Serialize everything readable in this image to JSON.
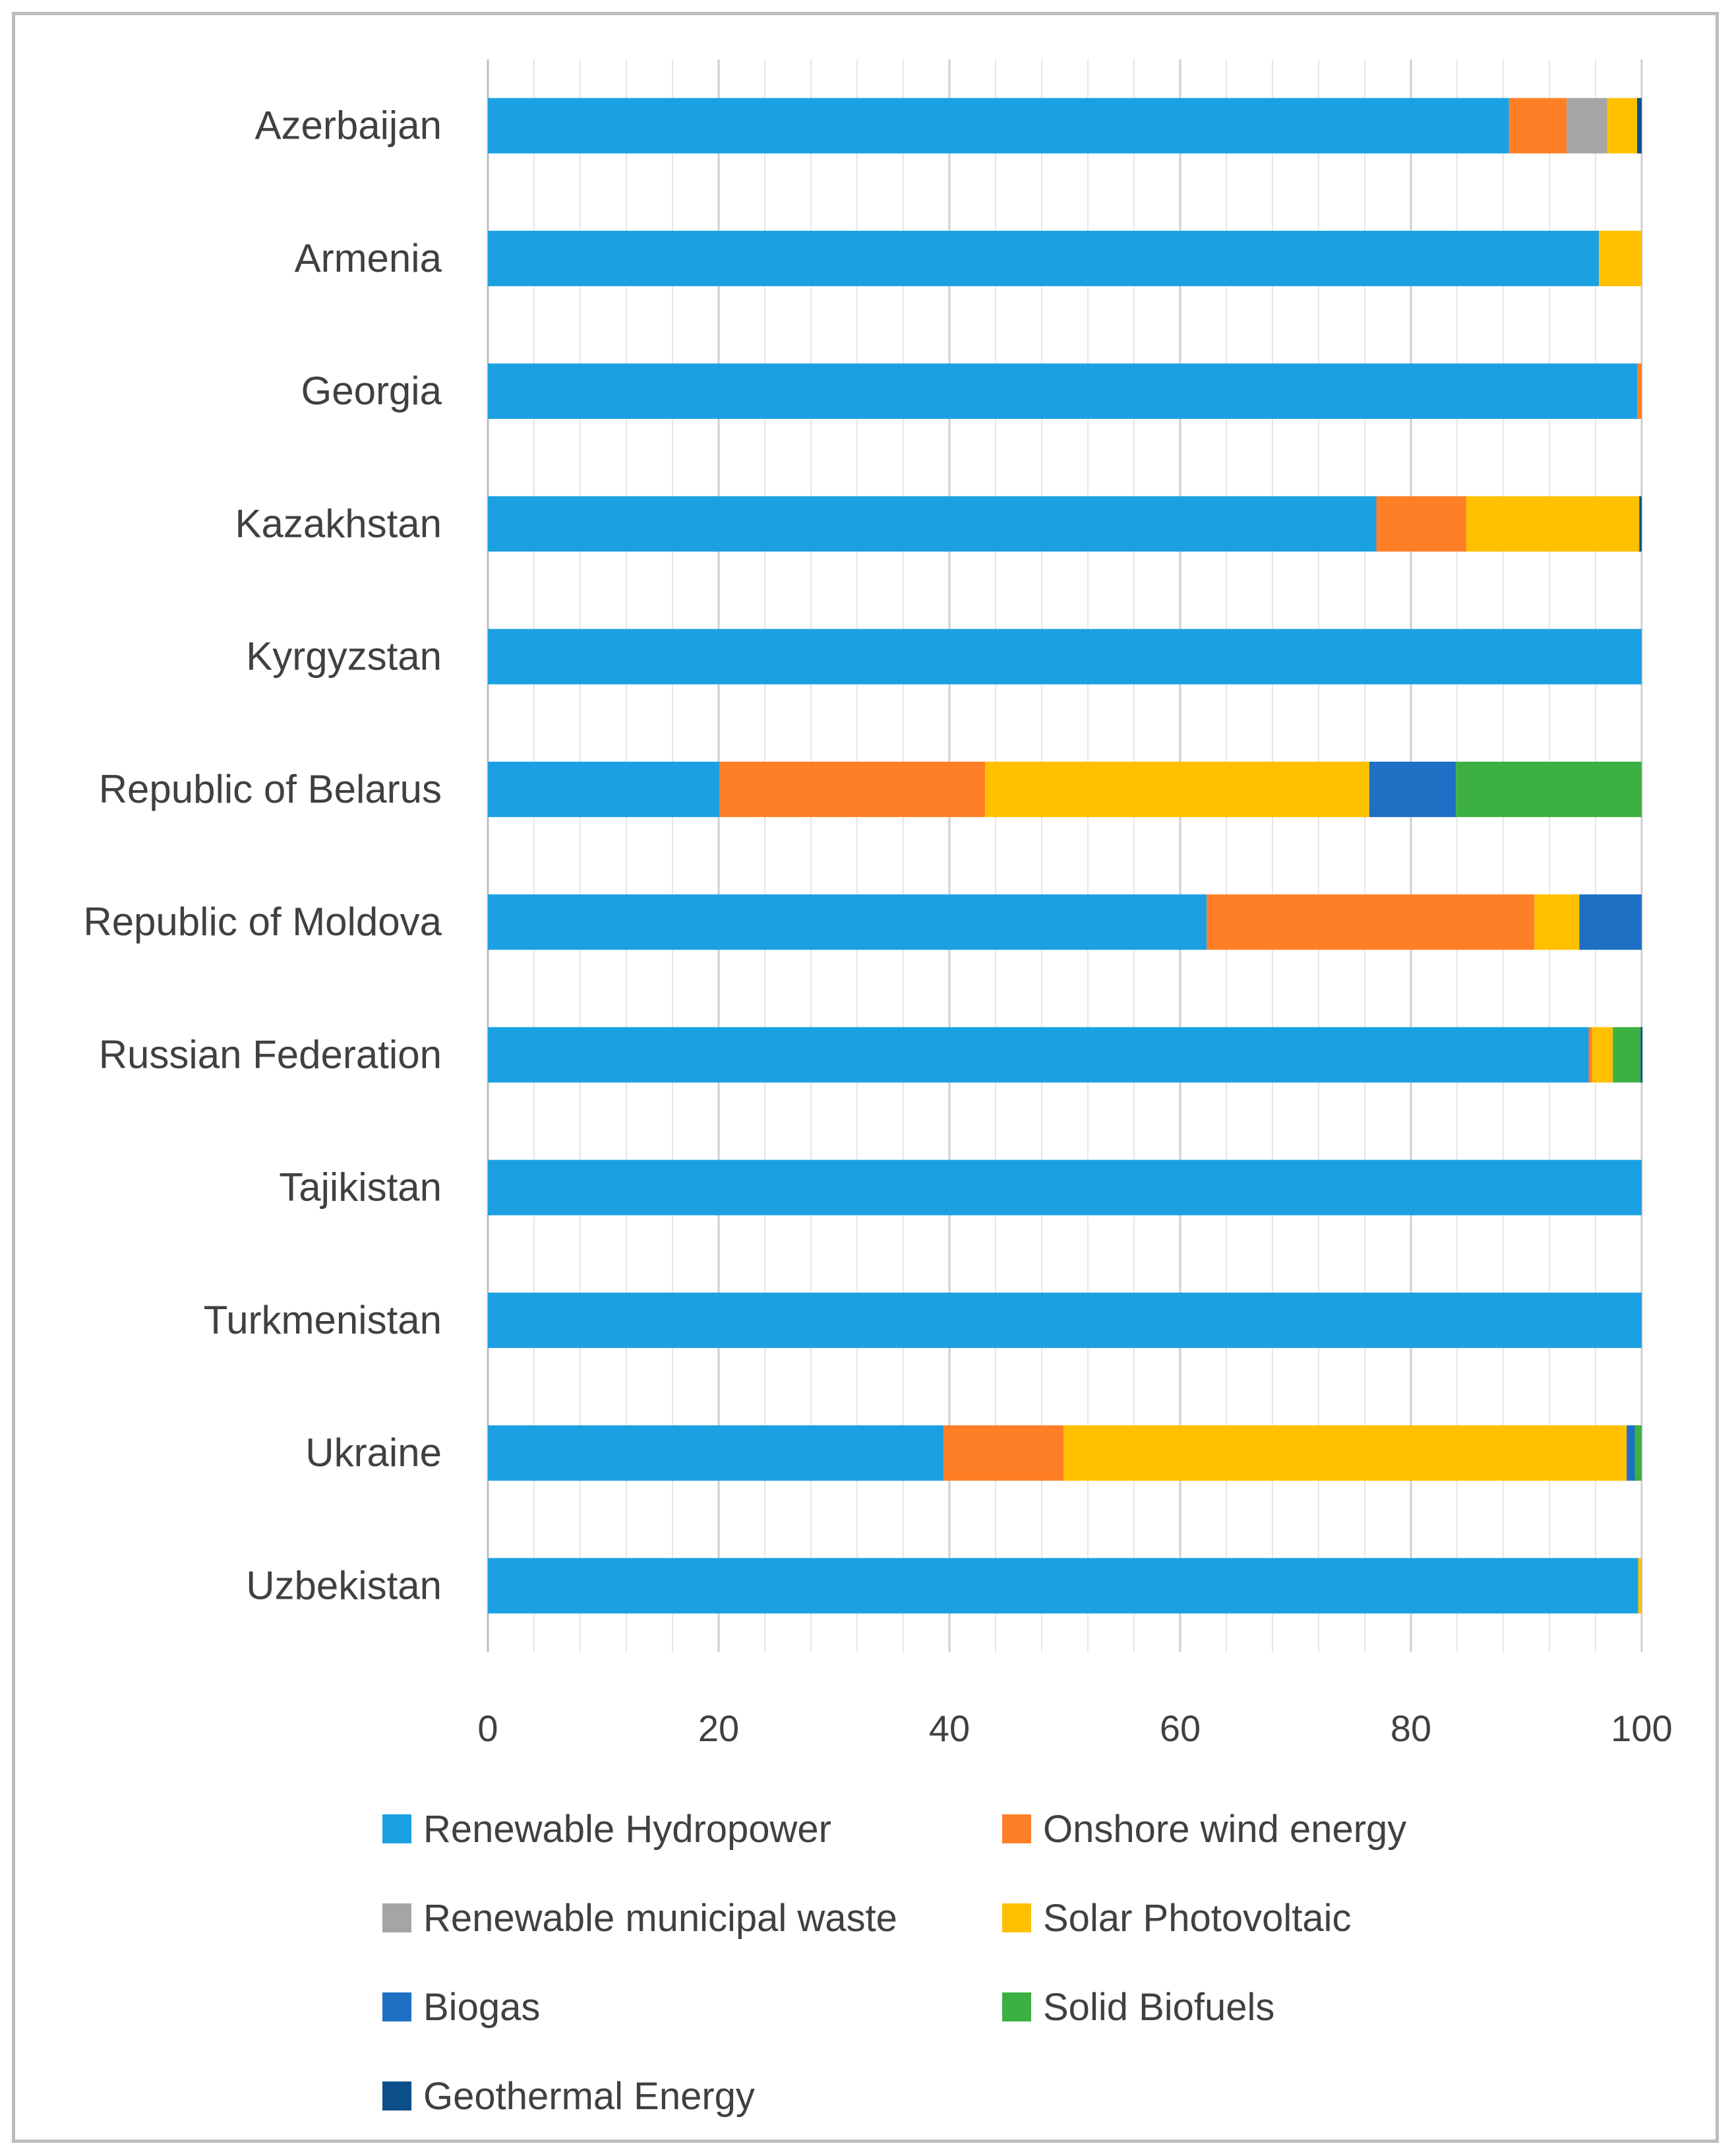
{
  "chart_data": {
    "type": "bar",
    "orientation": "horizontal",
    "stacked": true,
    "title": "",
    "xlabel": "",
    "ylabel": "",
    "xlim": [
      0,
      100
    ],
    "x_ticks": [
      0,
      20,
      40,
      60,
      80,
      100
    ],
    "grid": true,
    "legend_position": "bottom",
    "categories": [
      "Azerbaijan",
      "Armenia",
      "Georgia",
      "Kazakhstan",
      "Kyrgyzstan",
      "Republic of Belarus",
      "Republic of Moldova",
      "Russian Federation",
      "Tajikistan",
      "Turkmenistan",
      "Ukraine",
      "Uzbekistan"
    ],
    "series": [
      {
        "name": "Renewable Hydropower",
        "color": "#1ba1e2",
        "values": [
          88.5,
          96.3,
          99.6,
          77.0,
          100,
          20.1,
          62.3,
          95.4,
          100,
          100,
          39.5,
          99.7
        ]
      },
      {
        "name": "Onshore wind energy",
        "color": "#ff7f27",
        "values": [
          5.0,
          0,
          0.4,
          7.8,
          0,
          23.0,
          28.4,
          0.3,
          0,
          0,
          10.4,
          0
        ]
      },
      {
        "name": "Renewable municipal waste",
        "color": "#a5a5a5",
        "values": [
          3.5,
          0,
          0,
          0,
          0,
          0,
          0,
          0,
          0,
          0,
          0,
          0
        ]
      },
      {
        "name": "Solar Photovoltaic",
        "color": "#ffc000",
        "values": [
          2.6,
          3.7,
          0,
          15.0,
          0,
          33.3,
          3.9,
          1.8,
          0,
          0,
          48.8,
          0.3
        ]
      },
      {
        "name": "Biogas",
        "color": "#1f6fc5",
        "values": [
          0,
          0,
          0,
          0,
          0,
          7.5,
          5.4,
          0,
          0,
          0,
          0.7,
          0
        ]
      },
      {
        "name": "Solid Biofuels",
        "color": "#3cb043",
        "values": [
          0,
          0,
          0,
          0,
          0,
          16.1,
          0,
          2.4,
          0,
          0,
          0.6,
          0
        ]
      },
      {
        "name": "Geothermal Energy",
        "color": "#0d4f8b",
        "values": [
          0.4,
          0,
          0,
          0.2,
          0,
          0,
          0,
          0.1,
          0,
          0,
          0,
          0
        ]
      }
    ]
  }
}
